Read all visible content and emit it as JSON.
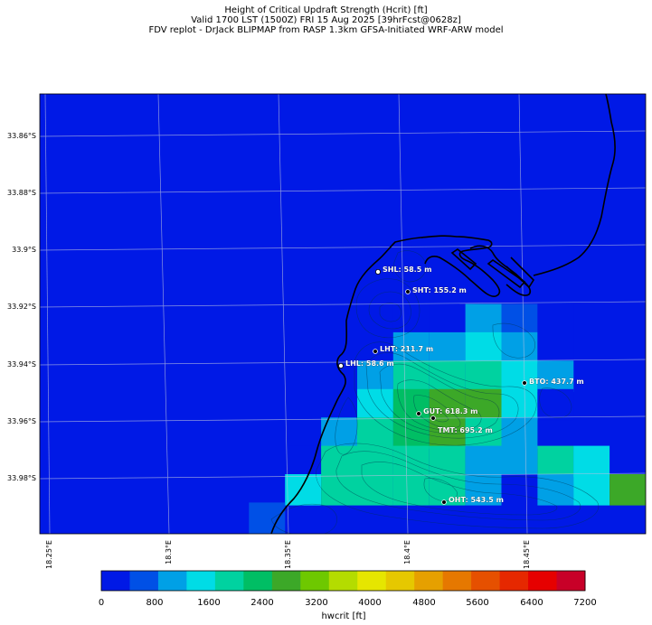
{
  "title_lines": [
    "Height of Critical Updraft Strength (Hcrit) [ft]",
    "Valid 1700 LST (1500Z) FRI 15 Aug 2025 [39hrFcst@0628z]",
    "FDV replot - DrJack BLIPMAP from RASP 1.3km GFSA-Initiated WRF-ARW model"
  ],
  "lat_ticks": [
    "33.86°S",
    "33.88°S",
    "33.9°S",
    "33.92°S",
    "33.94°S",
    "33.96°S",
    "33.98°S"
  ],
  "lon_ticks": [
    "18.25°E",
    "18.3°E",
    "18.35°E",
    "18.4°E",
    "18.45°E"
  ],
  "stations": [
    {
      "label": "SHL: 58.5 m",
      "marker": "hollow"
    },
    {
      "label": "SHT: 155.2 m",
      "marker": "dot"
    },
    {
      "label": "LHT: 211.7 m",
      "marker": "dot"
    },
    {
      "label": "LHL: 58.6 m",
      "marker": "hollow"
    },
    {
      "label": "BTO: 437.7 m",
      "marker": "dot"
    },
    {
      "label": "GUT: 618.3 m",
      "marker": "dot"
    },
    {
      "label": "TMT: 695.2 m",
      "marker": "dot"
    },
    {
      "label": "OHT: 543.5 m",
      "marker": "dot"
    }
  ],
  "colorbar": {
    "label": "hwcrit [ft]",
    "ticks": [
      "0",
      "800",
      "1600",
      "2400",
      "3200",
      "4000",
      "4800",
      "5600",
      "6400",
      "7200"
    ],
    "colors": [
      "#0019e6",
      "#0050e6",
      "#00a0e6",
      "#00dce6",
      "#00d2a0",
      "#00be64",
      "#3ca828",
      "#6ec800",
      "#b4dc00",
      "#e6e600",
      "#e6c800",
      "#e6a000",
      "#e67800",
      "#e65000",
      "#e62800",
      "#e60000",
      "#c80028"
    ]
  },
  "chart_data": {
    "type": "heatmap",
    "title": "Height of Critical Updraft Strength (Hcrit) [ft]",
    "variable": "hwcrit [ft]",
    "lon_range": [
      18.2475,
      18.4995
    ],
    "lat_range": [
      33.8435,
      33.9985
    ],
    "background_value_ft": 0,
    "cell_size_deg": 0.01,
    "lat_rows": [
      33.9225,
      33.9325,
      33.9425,
      33.9525,
      33.9625,
      33.9725,
      33.9825,
      33.9925
    ],
    "lon_cols": [
      18.3495,
      18.3645,
      18.3795,
      18.3945,
      18.4095,
      18.4245,
      18.4395,
      18.4545,
      18.4695,
      18.4845
    ],
    "cells_ft": [
      {
        "lat": 33.9155,
        "lon": 18.3945,
        "value": 150
      },
      {
        "lat": 33.9155,
        "lon": 18.4095,
        "value": 200
      },
      {
        "lat": 33.9225,
        "lon": 18.3795,
        "value": 200
      },
      {
        "lat": 33.9225,
        "lon": 18.3945,
        "value": 300
      },
      {
        "lat": 33.9225,
        "lon": 18.4095,
        "value": 400
      },
      {
        "lat": 33.9225,
        "lon": 18.4245,
        "value": 900
      },
      {
        "lat": 33.9225,
        "lon": 18.4395,
        "value": 500
      },
      {
        "lat": 33.9225,
        "lon": 18.4545,
        "value": 400
      },
      {
        "lat": 33.9325,
        "lon": 18.3795,
        "value": 300
      },
      {
        "lat": 33.9325,
        "lon": 18.3945,
        "value": 900
      },
      {
        "lat": 33.9325,
        "lon": 18.4095,
        "value": 900
      },
      {
        "lat": 33.9325,
        "lon": 18.4245,
        "value": 1500
      },
      {
        "lat": 33.9325,
        "lon": 18.4395,
        "value": 900
      },
      {
        "lat": 33.9325,
        "lon": 18.4545,
        "value": 400
      },
      {
        "lat": 33.9425,
        "lon": 18.3795,
        "value": 900
      },
      {
        "lat": 33.9425,
        "lon": 18.3945,
        "value": 1900
      },
      {
        "lat": 33.9425,
        "lon": 18.4095,
        "value": 1900
      },
      {
        "lat": 33.9425,
        "lon": 18.4245,
        "value": 1900
      },
      {
        "lat": 33.9425,
        "lon": 18.4395,
        "value": 1500
      },
      {
        "lat": 33.9425,
        "lon": 18.4545,
        "value": 900
      },
      {
        "lat": 33.9525,
        "lon": 18.3795,
        "value": 1500
      },
      {
        "lat": 33.9525,
        "lon": 18.3945,
        "value": 2500
      },
      {
        "lat": 33.9525,
        "lon": 18.4095,
        "value": 2900
      },
      {
        "lat": 33.9525,
        "lon": 18.4245,
        "value": 2900
      },
      {
        "lat": 33.9525,
        "lon": 18.4395,
        "value": 1500
      },
      {
        "lat": 33.9525,
        "lon": 18.4545,
        "value": 400
      },
      {
        "lat": 33.9625,
        "lon": 18.3645,
        "value": 900
      },
      {
        "lat": 33.9625,
        "lon": 18.3795,
        "value": 1900
      },
      {
        "lat": 33.9625,
        "lon": 18.3945,
        "value": 2500
      },
      {
        "lat": 33.9625,
        "lon": 18.4095,
        "value": 2900
      },
      {
        "lat": 33.9625,
        "lon": 18.4245,
        "value": 1900
      },
      {
        "lat": 33.9625,
        "lon": 18.4395,
        "value": 900
      },
      {
        "lat": 33.9725,
        "lon": 18.3495,
        "value": 400
      },
      {
        "lat": 33.9725,
        "lon": 18.3645,
        "value": 1900
      },
      {
        "lat": 33.9725,
        "lon": 18.3795,
        "value": 1900
      },
      {
        "lat": 33.9725,
        "lon": 18.3945,
        "value": 1900
      },
      {
        "lat": 33.9725,
        "lon": 18.4095,
        "value": 1900
      },
      {
        "lat": 33.9725,
        "lon": 18.4245,
        "value": 900
      },
      {
        "lat": 33.9725,
        "lon": 18.4395,
        "value": 900
      },
      {
        "lat": 33.9725,
        "lon": 18.4545,
        "value": 1900
      },
      {
        "lat": 33.9725,
        "lon": 18.4695,
        "value": 1500
      },
      {
        "lat": 33.9825,
        "lon": 18.3345,
        "value": 400
      },
      {
        "lat": 33.9825,
        "lon": 18.3495,
        "value": 1500
      },
      {
        "lat": 33.9825,
        "lon": 18.3645,
        "value": 1900
      },
      {
        "lat": 33.9825,
        "lon": 18.3795,
        "value": 1900
      },
      {
        "lat": 33.9825,
        "lon": 18.3945,
        "value": 1900
      },
      {
        "lat": 33.9825,
        "lon": 18.4095,
        "value": 1900
      },
      {
        "lat": 33.9825,
        "lon": 18.4245,
        "value": 900
      },
      {
        "lat": 33.9825,
        "lon": 18.4395,
        "value": 400
      },
      {
        "lat": 33.9825,
        "lon": 18.4545,
        "value": 900
      },
      {
        "lat": 33.9825,
        "lon": 18.4695,
        "value": 1500
      },
      {
        "lat": 33.9825,
        "lon": 18.4845,
        "value": 2900
      },
      {
        "lat": 33.9925,
        "lon": 18.3345,
        "value": 600
      }
    ]
  }
}
